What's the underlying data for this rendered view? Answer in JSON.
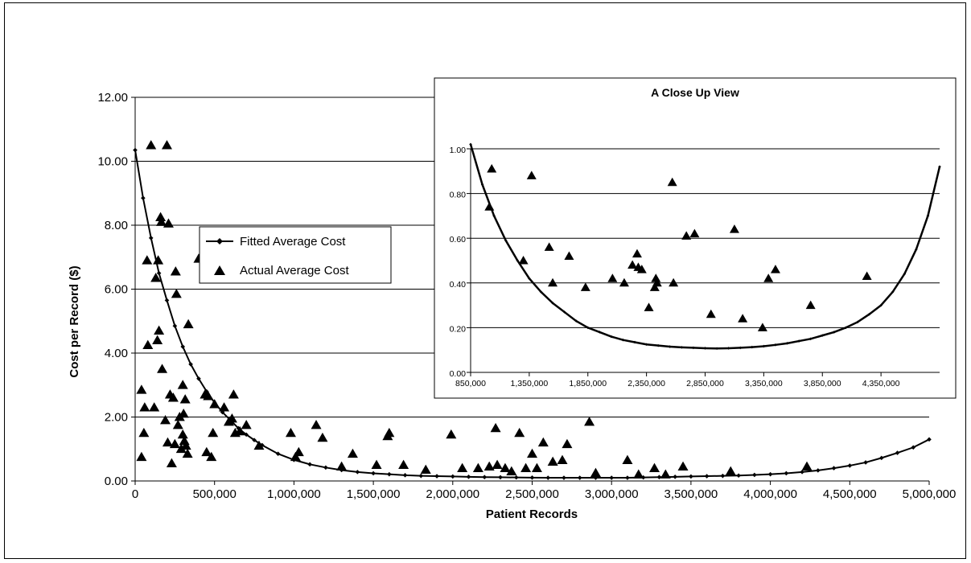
{
  "main": {
    "type": "scatter",
    "xlabel": "Patient Records",
    "ylabel": "Cost per Record ($)",
    "xlim": [
      0,
      5000000
    ],
    "ylim": [
      0,
      12
    ],
    "x_ticks": [
      "0",
      "500,000",
      "1,000,000",
      "1,500,000",
      "2,000,000",
      "2,500,000",
      "3,000,000",
      "3,500,000",
      "4,000,000",
      "4,500,000",
      "5,000,000"
    ],
    "y_ticks": [
      "0.00",
      "2.00",
      "4.00",
      "6.00",
      "8.00",
      "10.00",
      "12.00"
    ],
    "grid": "horizontal",
    "legend": {
      "position": "center-left",
      "fitted_label": "Fitted Average Cost",
      "actual_label": "Actual Average Cost"
    }
  },
  "inset": {
    "title": "A Close Up View",
    "xlim": [
      850000,
      4850000
    ],
    "ylim": [
      0,
      1
    ],
    "x_ticks": [
      "850,000",
      "1,350,000",
      "1,850,000",
      "2,350,000",
      "2,850,000",
      "3,350,000",
      "3,850,000",
      "4,350,000"
    ],
    "y_ticks": [
      "0.00",
      "0.20",
      "0.40",
      "0.60",
      "0.80",
      "1.00"
    ],
    "grid": "horizontal"
  },
  "chart_data": [
    {
      "type": "scatter",
      "xlabel": "Patient Records",
      "ylabel": "Cost per Record ($)",
      "xlim": [
        0,
        5000000
      ],
      "ylim": [
        0,
        12
      ],
      "series": [
        {
          "name": "Fitted Average Cost",
          "style": "line-with-diamond-markers",
          "x": [
            0,
            50000,
            100000,
            150000,
            200000,
            250000,
            300000,
            350000,
            400000,
            450000,
            500000,
            550000,
            600000,
            650000,
            700000,
            750000,
            800000,
            900000,
            1000000,
            1100000,
            1200000,
            1300000,
            1400000,
            1500000,
            1600000,
            1700000,
            1800000,
            1900000,
            2000000,
            2100000,
            2200000,
            2300000,
            2400000,
            2500000,
            2600000,
            2700000,
            2800000,
            2900000,
            3000000,
            3100000,
            3200000,
            3300000,
            3400000,
            3500000,
            3600000,
            3700000,
            3800000,
            3900000,
            4000000,
            4100000,
            4200000,
            4300000,
            4400000,
            4500000,
            4600000,
            4700000,
            4800000,
            4900000,
            5000000
          ],
          "y": [
            10.35,
            8.85,
            7.6,
            6.5,
            5.65,
            4.85,
            4.2,
            3.65,
            3.2,
            2.8,
            2.45,
            2.15,
            1.9,
            1.65,
            1.45,
            1.28,
            1.12,
            0.85,
            0.66,
            0.52,
            0.42,
            0.34,
            0.28,
            0.24,
            0.21,
            0.18,
            0.16,
            0.15,
            0.14,
            0.13,
            0.12,
            0.115,
            0.11,
            0.105,
            0.1,
            0.1,
            0.1,
            0.1,
            0.1,
            0.1,
            0.11,
            0.12,
            0.13,
            0.14,
            0.15,
            0.16,
            0.17,
            0.19,
            0.21,
            0.24,
            0.28,
            0.33,
            0.4,
            0.48,
            0.58,
            0.72,
            0.88,
            1.05,
            1.3
          ]
        },
        {
          "name": "Actual Average Cost",
          "style": "triangle-markers",
          "x": [
            40000,
            40000,
            55000,
            60000,
            75000,
            80000,
            100000,
            120000,
            130000,
            140000,
            145000,
            150000,
            160000,
            165000,
            170000,
            190000,
            200000,
            205000,
            210000,
            220000,
            230000,
            240000,
            250000,
            255000,
            260000,
            270000,
            280000,
            290000,
            300000,
            300000,
            305000,
            310000,
            315000,
            320000,
            330000,
            335000,
            400000,
            440000,
            450000,
            460000,
            480000,
            490000,
            500000,
            560000,
            590000,
            610000,
            620000,
            630000,
            660000,
            700000,
            780000,
            980000,
            1010000,
            1030000,
            1140000,
            1180000,
            1300000,
            1370000,
            1520000,
            1590000,
            1600000,
            1690000,
            1830000,
            1990000,
            2060000,
            2160000,
            2230000,
            2270000,
            2280000,
            2330000,
            2370000,
            2420000,
            2460000,
            2500000,
            2530000,
            2570000,
            2630000,
            2690000,
            2720000,
            2860000,
            2900000,
            3100000,
            3170000,
            3270000,
            3340000,
            3450000,
            3750000,
            4230000
          ],
          "y": [
            0.75,
            2.85,
            1.5,
            2.3,
            6.9,
            4.25,
            10.5,
            2.3,
            6.35,
            4.4,
            6.9,
            4.7,
            8.25,
            8.1,
            3.5,
            1.9,
            10.5,
            1.2,
            8.05,
            2.7,
            0.55,
            2.6,
            1.15,
            6.55,
            5.85,
            1.75,
            2.0,
            1.0,
            1.45,
            3.0,
            2.1,
            1.25,
            2.55,
            1.1,
            0.85,
            4.9,
            6.95,
            2.7,
            0.9,
            2.65,
            0.75,
            1.5,
            2.4,
            2.3,
            1.85,
            1.95,
            2.7,
            1.5,
            1.55,
            1.75,
            1.1,
            1.5,
            0.75,
            0.9,
            1.75,
            1.35,
            0.45,
            0.85,
            0.5,
            1.4,
            1.5,
            0.5,
            0.35,
            1.45,
            0.4,
            0.4,
            0.45,
            1.65,
            0.5,
            0.4,
            0.3,
            1.5,
            0.4,
            0.85,
            0.4,
            1.2,
            0.6,
            0.65,
            1.15,
            1.85,
            0.25,
            0.65,
            0.2,
            0.4,
            0.2,
            0.45,
            0.3,
            0.45
          ]
        }
      ]
    },
    {
      "type": "scatter",
      "title": "A Close Up View",
      "xlim": [
        850000,
        4850000
      ],
      "ylim": [
        0,
        1
      ],
      "series": [
        {
          "name": "Fitted Average Cost",
          "style": "line-with-diamond-markers",
          "x": [
            850000,
            950000,
            1050000,
            1150000,
            1250000,
            1350000,
            1450000,
            1550000,
            1650000,
            1750000,
            1850000,
            1950000,
            2050000,
            2150000,
            2250000,
            2350000,
            2450000,
            2550000,
            2650000,
            2750000,
            2850000,
            2950000,
            3050000,
            3150000,
            3250000,
            3350000,
            3450000,
            3550000,
            3650000,
            3750000,
            3850000,
            3950000,
            4050000,
            4150000,
            4250000,
            4350000,
            4450000,
            4550000,
            4650000,
            4750000,
            4850000
          ],
          "y": [
            1.02,
            0.84,
            0.7,
            0.59,
            0.5,
            0.42,
            0.36,
            0.31,
            0.27,
            0.23,
            0.2,
            0.18,
            0.16,
            0.145,
            0.135,
            0.125,
            0.12,
            0.115,
            0.112,
            0.11,
            0.108,
            0.107,
            0.108,
            0.11,
            0.113,
            0.117,
            0.123,
            0.13,
            0.14,
            0.15,
            0.165,
            0.18,
            0.2,
            0.225,
            0.26,
            0.3,
            0.36,
            0.44,
            0.55,
            0.7,
            0.92
          ]
        },
        {
          "name": "Actual Average Cost",
          "style": "triangle-markers",
          "x": [
            1010000,
            1030000,
            1300000,
            1370000,
            1520000,
            1550000,
            1690000,
            1830000,
            2060000,
            2160000,
            2230000,
            2270000,
            2280000,
            2310000,
            2370000,
            2420000,
            2430000,
            2440000,
            2570000,
            2580000,
            2690000,
            2760000,
            2900000,
            3100000,
            3170000,
            3340000,
            3390000,
            3450000,
            3750000,
            4230000
          ],
          "y": [
            0.74,
            0.91,
            0.5,
            0.88,
            0.56,
            0.4,
            0.52,
            0.38,
            0.42,
            0.4,
            0.48,
            0.53,
            0.47,
            0.46,
            0.29,
            0.38,
            0.42,
            0.4,
            0.85,
            0.4,
            0.61,
            0.62,
            0.26,
            0.64,
            0.24,
            0.2,
            0.42,
            0.46,
            0.3,
            0.43
          ]
        }
      ]
    }
  ]
}
